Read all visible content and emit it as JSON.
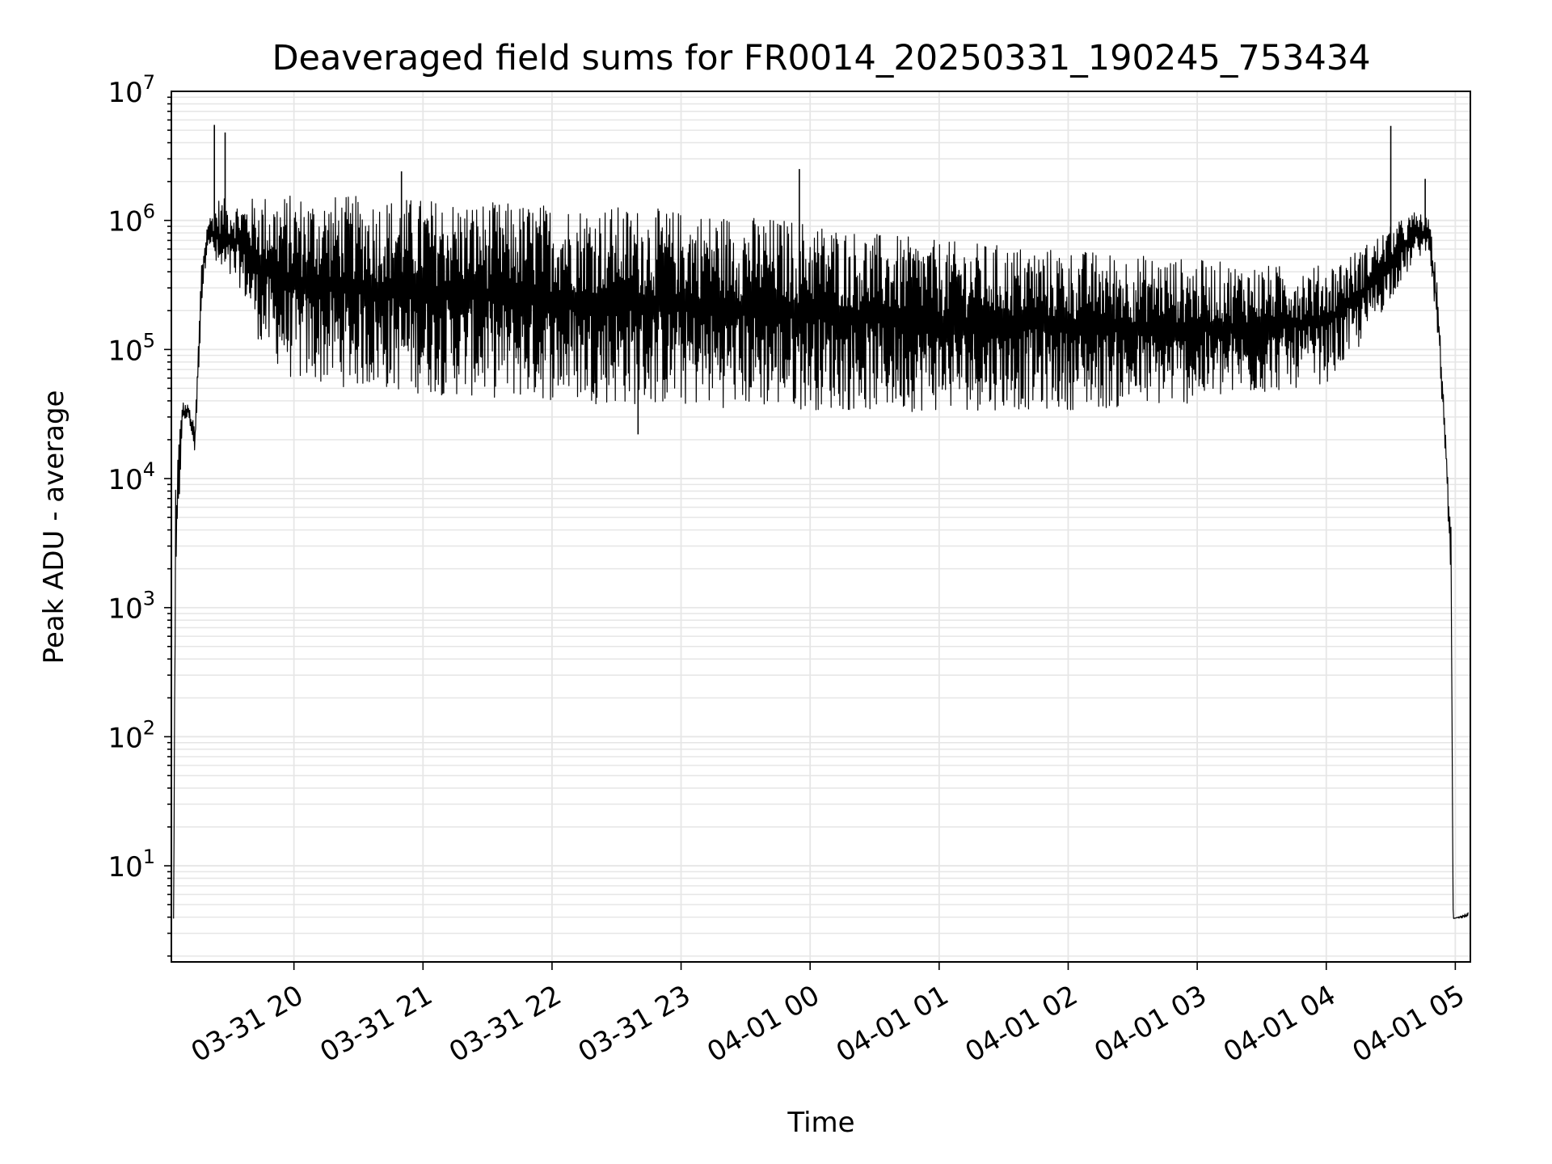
{
  "chart_data": {
    "type": "line",
    "title": "Deaveraged field sums for FR0014_20250331_190245_753434",
    "xlabel": "Time",
    "ylabel": "Peak ADU - average",
    "yscale": "log",
    "grid": true,
    "line_color": "#000000",
    "grid_color": "#e6e6e6",
    "xlim": [
      "2025-03-31 19:03",
      "2025-04-01 05:07"
    ],
    "ylim": [
      1.8,
      10000000
    ],
    "x_ticks": [
      {
        "value": "2025-03-31 20:00",
        "label": "03-31 20"
      },
      {
        "value": "2025-03-31 21:00",
        "label": "03-31 21"
      },
      {
        "value": "2025-03-31 22:00",
        "label": "03-31 22"
      },
      {
        "value": "2025-03-31 23:00",
        "label": "03-31 23"
      },
      {
        "value": "2025-04-01 00:00",
        "label": "04-01 00"
      },
      {
        "value": "2025-04-01 01:00",
        "label": "04-01 01"
      },
      {
        "value": "2025-04-01 02:00",
        "label": "04-01 02"
      },
      {
        "value": "2025-04-01 03:00",
        "label": "04-01 03"
      },
      {
        "value": "2025-04-01 04:00",
        "label": "04-01 04"
      },
      {
        "value": "2025-04-01 05:00",
        "label": "04-01 05"
      }
    ],
    "y_ticks": [
      {
        "value": 10,
        "base": "10",
        "exp": "1"
      },
      {
        "value": 100,
        "base": "10",
        "exp": "2"
      },
      {
        "value": 1000,
        "base": "10",
        "exp": "3"
      },
      {
        "value": 10000,
        "base": "10",
        "exp": "4"
      },
      {
        "value": 100000,
        "base": "10",
        "exp": "5"
      },
      {
        "value": 1000000,
        "base": "10",
        "exp": "6"
      },
      {
        "value": 10000000,
        "base": "10",
        "exp": "7"
      }
    ],
    "envelope": [
      {
        "time": "2025-03-31 19:04",
        "low": 3.9,
        "high": 3.9
      },
      {
        "time": "2025-03-31 19:05",
        "low": 800,
        "high": 12000
      },
      {
        "time": "2025-03-31 19:08",
        "low": 25000,
        "high": 40000
      },
      {
        "time": "2025-03-31 19:11",
        "low": 30000,
        "high": 37000
      },
      {
        "time": "2025-03-31 19:14",
        "low": 15000,
        "high": 25000
      },
      {
        "time": "2025-03-31 19:17",
        "low": 200000,
        "high": 500000
      },
      {
        "time": "2025-03-31 19:20",
        "low": 700000,
        "high": 1000000
      },
      {
        "time": "2025-03-31 19:25",
        "low": 350000,
        "high": 1500000
      },
      {
        "time": "2025-03-31 19:35",
        "low": 300000,
        "high": 1400000
      },
      {
        "time": "2025-03-31 19:45",
        "low": 100000,
        "high": 1600000
      },
      {
        "time": "2025-03-31 20:00",
        "low": 55000,
        "high": 1600000
      },
      {
        "time": "2025-03-31 20:30",
        "low": 50000,
        "high": 1550000
      },
      {
        "time": "2025-03-31 21:00",
        "low": 45000,
        "high": 1500000
      },
      {
        "time": "2025-03-31 21:30",
        "low": 42000,
        "high": 1400000
      },
      {
        "time": "2025-03-31 22:00",
        "low": 40000,
        "high": 1350000
      },
      {
        "time": "2025-03-31 22:30",
        "low": 37000,
        "high": 1300000
      },
      {
        "time": "2025-03-31 23:00",
        "low": 36000,
        "high": 1200000
      },
      {
        "time": "2025-03-31 23:30",
        "low": 35000,
        "high": 1100000
      },
      {
        "time": "2025-04-01 00:00",
        "low": 34000,
        "high": 1000000
      },
      {
        "time": "2025-04-01 00:30",
        "low": 33000,
        "high": 800000
      },
      {
        "time": "2025-04-01 01:00",
        "low": 33000,
        "high": 700000
      },
      {
        "time": "2025-04-01 01:30",
        "low": 34000,
        "high": 650000
      },
      {
        "time": "2025-04-01 02:00",
        "low": 34000,
        "high": 600000
      },
      {
        "time": "2025-04-01 02:30",
        "low": 35000,
        "high": 550000
      },
      {
        "time": "2025-04-01 03:00",
        "low": 38000,
        "high": 500000
      },
      {
        "time": "2025-04-01 03:30",
        "low": 45000,
        "high": 450000
      },
      {
        "time": "2025-04-01 04:00",
        "low": 55000,
        "high": 450000
      },
      {
        "time": "2025-04-01 04:15",
        "low": 100000,
        "high": 600000
      },
      {
        "time": "2025-04-01 04:30",
        "low": 250000,
        "high": 900000
      },
      {
        "time": "2025-04-01 04:42",
        "low": 500000,
        "high": 1200000
      },
      {
        "time": "2025-04-01 04:48",
        "low": 600000,
        "high": 1000000
      },
      {
        "time": "2025-04-01 04:52",
        "low": 100000,
        "high": 300000
      },
      {
        "time": "2025-04-01 04:55",
        "low": 20000,
        "high": 30000
      },
      {
        "time": "2025-04-01 04:58",
        "low": 1500,
        "high": 4500
      },
      {
        "time": "2025-04-01 04:59",
        "low": 3.9,
        "high": 3.9
      },
      {
        "time": "2025-04-01 05:06",
        "low": 3.9,
        "high": 4.4
      }
    ],
    "spikes": [
      {
        "time": "2025-03-31 19:23",
        "value": 5500000
      },
      {
        "time": "2025-03-31 19:28",
        "value": 4800000
      },
      {
        "time": "2025-03-31 20:50",
        "value": 2400000
      },
      {
        "time": "2025-03-31 23:55",
        "value": 2500000
      },
      {
        "time": "2025-04-01 04:30",
        "value": 5400000
      },
      {
        "time": "2025-04-01 04:46",
        "value": 2100000
      },
      {
        "time": "2025-03-31 22:40",
        "value": 22000
      }
    ]
  }
}
